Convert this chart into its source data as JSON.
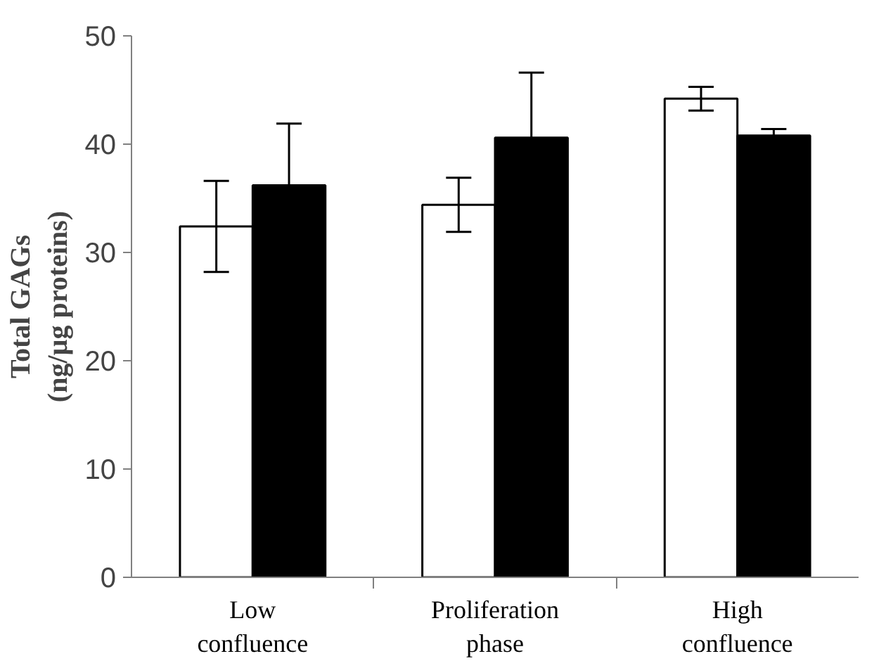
{
  "chart_data": {
    "type": "bar",
    "ylabel": "Total GAGs\n(ng/µg proteins)",
    "categories": [
      "Low\nconfluence",
      "Proliferation\nphase",
      "High\nconfluence"
    ],
    "series": [
      {
        "color": "#ffffff",
        "values": [
          32.4,
          34.4,
          44.2
        ],
        "errors": [
          4.2,
          2.5,
          1.1
        ]
      },
      {
        "color": "#000000",
        "values": [
          36.2,
          40.6,
          40.8
        ],
        "errors": [
          5.7,
          6.0,
          0.6
        ]
      }
    ],
    "ylim": [
      0,
      50
    ],
    "yticks": [
      0,
      10,
      20,
      30,
      40,
      50
    ],
    "grid": false
  }
}
